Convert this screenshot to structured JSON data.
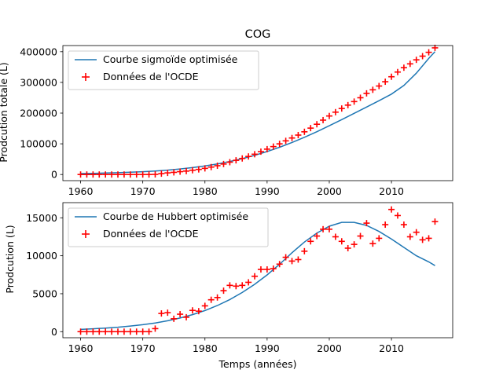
{
  "chart_data": [
    {
      "type": "line",
      "title": "COG",
      "xlabel": "",
      "ylabel": "Prodcution totale (L)",
      "xlim": [
        1957.15,
        2019.85
      ],
      "ylim": [
        -20000,
        420000
      ],
      "xticks": [
        1960,
        1970,
        1980,
        1990,
        2000,
        2010
      ],
      "xtick_labels": [
        "1960",
        "1970",
        "1980",
        "1990",
        "2000",
        "2010"
      ],
      "yticks": [
        0,
        100000,
        200000,
        300000,
        400000
      ],
      "ytick_labels": [
        "0",
        "100000",
        "200000",
        "300000",
        "400000"
      ],
      "grid": false,
      "legend_position": "upper-left",
      "series": [
        {
          "name": "Courbe sigmoïde optimisée",
          "kind": "line",
          "color": "#1f77b4",
          "x": [
            1960,
            1962,
            1964,
            1966,
            1968,
            1970,
            1972,
            1974,
            1976,
            1978,
            1980,
            1982,
            1984,
            1986,
            1988,
            1990,
            1992,
            1994,
            1996,
            1998,
            2000,
            2002,
            2004,
            2006,
            2008,
            2010,
            2012,
            2014,
            2016,
            2017
          ],
          "y": [
            3000,
            3800,
            4700,
            5900,
            7400,
            9200,
            11500,
            14400,
            18000,
            22400,
            27800,
            34400,
            42300,
            51600,
            62400,
            74800,
            88800,
            104300,
            121300,
            139500,
            158800,
            178800,
            199200,
            219800,
            240400,
            262000,
            290000,
            330000,
            378000,
            400000
          ]
        },
        {
          "name": "Données de l'OCDE",
          "kind": "scatter",
          "marker": "+",
          "color": "#ff0000",
          "x": [
            1960,
            1961,
            1962,
            1963,
            1964,
            1965,
            1966,
            1967,
            1968,
            1969,
            1970,
            1971,
            1972,
            1973,
            1974,
            1975,
            1976,
            1977,
            1978,
            1979,
            1980,
            1981,
            1982,
            1983,
            1984,
            1985,
            1986,
            1987,
            1988,
            1989,
            1990,
            1991,
            1992,
            1993,
            1994,
            1995,
            1996,
            1997,
            1998,
            1999,
            2000,
            2001,
            2002,
            2003,
            2004,
            2005,
            2006,
            2007,
            2008,
            2009,
            2010,
            2011,
            2012,
            2013,
            2014,
            2015,
            2016,
            2017
          ],
          "y": [
            0,
            0,
            0,
            0,
            0,
            0,
            0,
            0,
            0,
            0,
            0,
            0,
            400,
            2800,
            5300,
            7000,
            9300,
            11100,
            13900,
            16600,
            20000,
            24200,
            28700,
            34100,
            40200,
            46200,
            52300,
            58800,
            66100,
            74400,
            82600,
            90900,
            99800,
            109600,
            118900,
            128400,
            139100,
            151100,
            163700,
            177100,
            190600,
            203100,
            215000,
            226000,
            237500,
            250000,
            264300,
            275900,
            288200,
            302200,
            318400,
            333700,
            347900,
            360400,
            373500,
            385500,
            398000,
            412500
          ]
        }
      ]
    },
    {
      "type": "line",
      "title": "",
      "xlabel": "Temps (années)",
      "ylabel": "Prodcution (L)",
      "xlim": [
        1957.15,
        2019.85
      ],
      "ylim": [
        -800,
        17000
      ],
      "xticks": [
        1960,
        1970,
        1980,
        1990,
        2000,
        2010
      ],
      "xtick_labels": [
        "1960",
        "1970",
        "1980",
        "1990",
        "2000",
        "2010"
      ],
      "yticks": [
        0,
        5000,
        10000,
        15000
      ],
      "ytick_labels": [
        "0",
        "5000",
        "10000",
        "15000"
      ],
      "grid": false,
      "legend_position": "upper-left",
      "series": [
        {
          "name": "Courbe de Hubbert optimisée",
          "kind": "line",
          "color": "#1f77b4",
          "x": [
            1960,
            1962,
            1964,
            1966,
            1968,
            1970,
            1972,
            1974,
            1976,
            1978,
            1980,
            1982,
            1984,
            1986,
            1988,
            1990,
            1992,
            1994,
            1996,
            1998,
            2000,
            2002,
            2004,
            2006,
            2008,
            2010,
            2012,
            2014,
            2016,
            2017
          ],
          "y": [
            300,
            380,
            470,
            590,
            740,
            920,
            1150,
            1440,
            1800,
            2240,
            2780,
            3440,
            4230,
            5160,
            6240,
            7480,
            8880,
            10400,
            11800,
            13000,
            13900,
            14400,
            14400,
            14000,
            13200,
            12200,
            11100,
            10000,
            9200,
            8700
          ]
        },
        {
          "name": "Données de l'OCDE",
          "kind": "scatter",
          "marker": "+",
          "color": "#ff0000",
          "x": [
            1960,
            1961,
            1962,
            1963,
            1964,
            1965,
            1966,
            1967,
            1968,
            1969,
            1970,
            1971,
            1972,
            1973,
            1974,
            1975,
            1976,
            1977,
            1978,
            1979,
            1980,
            1981,
            1982,
            1983,
            1984,
            1985,
            1986,
            1987,
            1988,
            1989,
            1990,
            1991,
            1992,
            1993,
            1994,
            1995,
            1996,
            1997,
            1998,
            1999,
            2000,
            2001,
            2002,
            2003,
            2004,
            2005,
            2006,
            2007,
            2008,
            2009,
            2010,
            2011,
            2012,
            2013,
            2014,
            2015,
            2016,
            2017
          ],
          "y": [
            0,
            0,
            0,
            0,
            0,
            0,
            0,
            0,
            0,
            0,
            0,
            0,
            400,
            2400,
            2500,
            1700,
            2300,
            1900,
            2800,
            2700,
            3400,
            4200,
            4500,
            5400,
            6100,
            6000,
            6100,
            6500,
            7300,
            8200,
            8200,
            8300,
            8900,
            9800,
            9300,
            9500,
            10600,
            11900,
            12600,
            13500,
            13500,
            12500,
            11900,
            11000,
            11500,
            12600,
            14300,
            11600,
            12300,
            14100,
            16100,
            15300,
            14100,
            12500,
            13100,
            12100,
            12300,
            14500
          ]
        }
      ]
    }
  ]
}
